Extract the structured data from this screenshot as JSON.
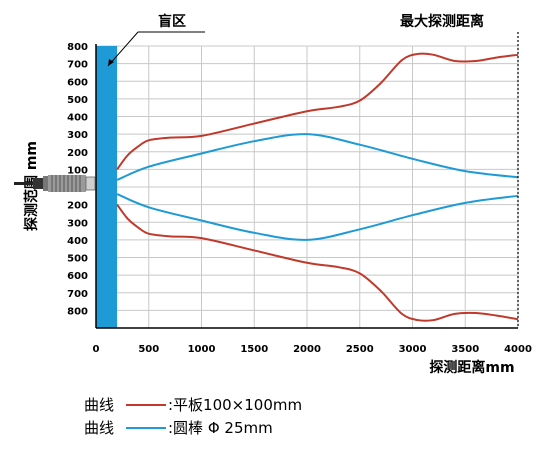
{
  "chart_data": {
    "type": "line",
    "title": "",
    "xlabel": "探测距离mm",
    "ylabel": "探测范围 mm",
    "xlim": [
      0,
      4000
    ],
    "ylim": [
      -800,
      800
    ],
    "x_ticks": [
      0,
      500,
      1000,
      1500,
      2000,
      2500,
      3000,
      3500,
      4000
    ],
    "y_tick_labels": [
      "800",
      "700",
      "600",
      "500",
      "400",
      "300",
      "200",
      "100",
      "100",
      "200",
      "300",
      "400",
      "500",
      "600",
      "700",
      "800"
    ],
    "grid": true,
    "annotations": {
      "blind_zone": "盲区",
      "max_distance": "最大探测距离"
    },
    "blind_zone_end": 200,
    "series": [
      {
        "name": "平板100×100mm",
        "legend_prefix": "曲线",
        "legend_label": ":平板100×100mm",
        "color": "#c0392b",
        "x": [
          200,
          300,
          400,
          500,
          700,
          1000,
          1500,
          2000,
          2300,
          2500,
          2700,
          2900,
          3050,
          3200,
          3400,
          3600,
          3800,
          4000
        ],
        "y_upper": [
          100,
          180,
          230,
          265,
          280,
          290,
          360,
          430,
          455,
          490,
          590,
          720,
          755,
          750,
          715,
          715,
          735,
          750
        ],
        "y_lower": [
          -100,
          -180,
          -230,
          -265,
          -280,
          -290,
          -360,
          -430,
          -455,
          -490,
          -590,
          -720,
          -755,
          -755,
          -720,
          -715,
          -730,
          -750
        ]
      },
      {
        "name": "圆棒Φ25mm",
        "legend_prefix": "曲线",
        "legend_label": ":圆棒 Φ 25mm",
        "color": "#1e9ad6",
        "x": [
          200,
          500,
          1000,
          1500,
          2000,
          2500,
          3000,
          3500,
          4000
        ],
        "y_upper": [
          40,
          115,
          190,
          260,
          300,
          240,
          160,
          90,
          55
        ],
        "y_lower": [
          -40,
          -115,
          -190,
          -260,
          -300,
          -240,
          -160,
          -90,
          -50
        ]
      }
    ],
    "colors": {
      "grid": "#c8c8c8",
      "blind_zone": "#1e9ad6",
      "axis": "#000000"
    }
  }
}
